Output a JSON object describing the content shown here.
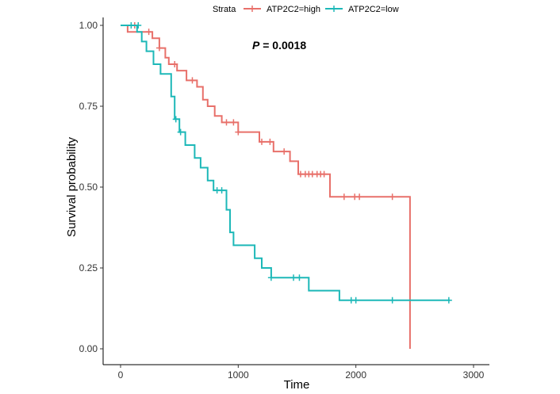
{
  "chart_data": {
    "type": "line",
    "subtype": "kaplan-meier",
    "title": "",
    "xlabel": "Time",
    "ylabel": "Survival probability",
    "xlim": [
      0,
      3000
    ],
    "ylim": [
      0,
      1
    ],
    "xticks": [
      0,
      1000,
      2000,
      3000
    ],
    "yticks": [
      0.0,
      0.25,
      0.5,
      0.75,
      1.0
    ],
    "xtick_labels": [
      "0",
      "1000",
      "2000",
      "3000"
    ],
    "ytick_labels": [
      "0.00",
      "0.25",
      "0.50",
      "0.75",
      "1.00"
    ],
    "grid": false,
    "legend": {
      "title": "Strata",
      "position": "top"
    },
    "annotation": {
      "prefix": "P",
      "text": " = 0.0018"
    },
    "series": [
      {
        "name": "ATP2C2=high",
        "color": "#E8706A",
        "steps": [
          [
            0,
            1.0
          ],
          [
            60,
            1.0
          ],
          [
            60,
            0.98
          ],
          [
            160,
            0.98
          ],
          [
            160,
            0.98
          ],
          [
            270,
            0.98
          ],
          [
            270,
            0.96
          ],
          [
            330,
            0.96
          ],
          [
            330,
            0.93
          ],
          [
            380,
            0.93
          ],
          [
            380,
            0.9
          ],
          [
            410,
            0.9
          ],
          [
            410,
            0.88
          ],
          [
            480,
            0.88
          ],
          [
            480,
            0.86
          ],
          [
            560,
            0.86
          ],
          [
            560,
            0.83
          ],
          [
            650,
            0.83
          ],
          [
            650,
            0.81
          ],
          [
            700,
            0.81
          ],
          [
            700,
            0.77
          ],
          [
            740,
            0.77
          ],
          [
            740,
            0.75
          ],
          [
            800,
            0.75
          ],
          [
            800,
            0.72
          ],
          [
            860,
            0.72
          ],
          [
            860,
            0.7
          ],
          [
            1000,
            0.7
          ],
          [
            1000,
            0.67
          ],
          [
            1180,
            0.67
          ],
          [
            1180,
            0.64
          ],
          [
            1300,
            0.64
          ],
          [
            1300,
            0.61
          ],
          [
            1440,
            0.61
          ],
          [
            1440,
            0.58
          ],
          [
            1510,
            0.58
          ],
          [
            1510,
            0.54
          ],
          [
            1780,
            0.54
          ],
          [
            1780,
            0.47
          ],
          [
            2460,
            0.47
          ],
          [
            2460,
            0.0
          ]
        ],
        "censored": [
          [
            120,
            1.0
          ],
          [
            240,
            0.98
          ],
          [
            330,
            0.93
          ],
          [
            460,
            0.88
          ],
          [
            610,
            0.83
          ],
          [
            900,
            0.7
          ],
          [
            960,
            0.7
          ],
          [
            1000,
            0.67
          ],
          [
            1200,
            0.64
          ],
          [
            1270,
            0.64
          ],
          [
            1390,
            0.61
          ],
          [
            1530,
            0.54
          ],
          [
            1570,
            0.54
          ],
          [
            1600,
            0.54
          ],
          [
            1630,
            0.54
          ],
          [
            1670,
            0.54
          ],
          [
            1700,
            0.54
          ],
          [
            1730,
            0.54
          ],
          [
            1900,
            0.47
          ],
          [
            1990,
            0.47
          ],
          [
            2030,
            0.47
          ],
          [
            2310,
            0.47
          ]
        ]
      },
      {
        "name": "ATP2C2=low",
        "color": "#1DB8B8",
        "steps": [
          [
            0,
            1.0
          ],
          [
            140,
            1.0
          ],
          [
            140,
            0.98
          ],
          [
            180,
            0.98
          ],
          [
            180,
            0.95
          ],
          [
            220,
            0.95
          ],
          [
            220,
            0.92
          ],
          [
            280,
            0.92
          ],
          [
            280,
            0.88
          ],
          [
            340,
            0.88
          ],
          [
            340,
            0.85
          ],
          [
            430,
            0.85
          ],
          [
            430,
            0.78
          ],
          [
            460,
            0.78
          ],
          [
            460,
            0.71
          ],
          [
            500,
            0.71
          ],
          [
            500,
            0.67
          ],
          [
            550,
            0.67
          ],
          [
            550,
            0.63
          ],
          [
            630,
            0.63
          ],
          [
            630,
            0.59
          ],
          [
            680,
            0.59
          ],
          [
            680,
            0.56
          ],
          [
            740,
            0.56
          ],
          [
            740,
            0.52
          ],
          [
            790,
            0.52
          ],
          [
            790,
            0.49
          ],
          [
            900,
            0.49
          ],
          [
            900,
            0.43
          ],
          [
            930,
            0.43
          ],
          [
            930,
            0.36
          ],
          [
            960,
            0.36
          ],
          [
            960,
            0.32
          ],
          [
            1140,
            0.32
          ],
          [
            1140,
            0.28
          ],
          [
            1200,
            0.28
          ],
          [
            1200,
            0.25
          ],
          [
            1280,
            0.25
          ],
          [
            1280,
            0.22
          ],
          [
            1600,
            0.22
          ],
          [
            1600,
            0.18
          ],
          [
            1860,
            0.18
          ],
          [
            1860,
            0.15
          ],
          [
            2800,
            0.15
          ]
        ],
        "censored": [
          [
            90,
            1.0
          ],
          [
            150,
            1.0
          ],
          [
            470,
            0.71
          ],
          [
            510,
            0.67
          ],
          [
            820,
            0.49
          ],
          [
            860,
            0.49
          ],
          [
            1280,
            0.22
          ],
          [
            1470,
            0.22
          ],
          [
            1520,
            0.22
          ],
          [
            1960,
            0.15
          ],
          [
            2000,
            0.15
          ],
          [
            2310,
            0.15
          ],
          [
            2790,
            0.15
          ]
        ]
      }
    ]
  }
}
